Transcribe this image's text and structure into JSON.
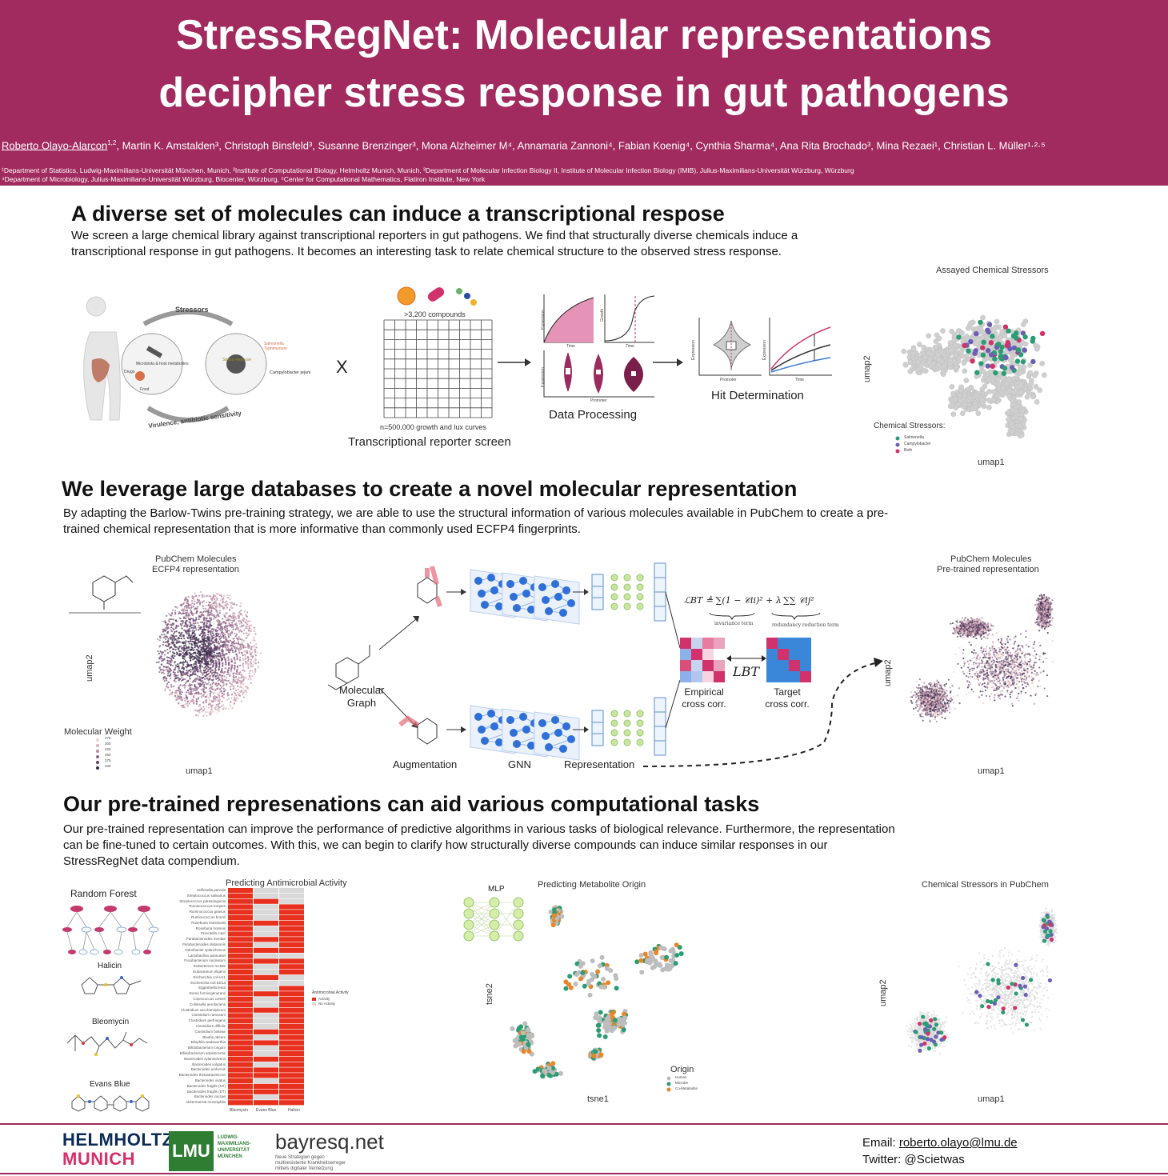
{
  "header": {
    "title_line1": "StressRegNet: Molecular representations",
    "title_line2": "decipher stress response in gut pathogens",
    "first_author": "Roberto Olayo-Alarcon",
    "first_author_sup": "1,2",
    "authors_rest": ", Martin K. Amstalden³, Christoph Binsfeld³, Susanne Brenzinger³, Mona Alzheimer M⁴, Annamaria Zannoni⁴, Fabian Koenig⁴, Cynthia Sharma⁴, Ana Rita Brochado³, Mina Rezaei¹, Christian L. Müller¹·²·⁵",
    "affiliations_line1": "¹Department of Statistics, Ludwig-Maximilians-Universität München, Munich, ²Institute of Computational Biology, Helmholtz Munich, Munich,  ³Department of Molecular Infection Biology II, Institute of Molecular Infection Biology (IMIB), Julius-Maximilians-Universität Würzburg, Würzburg",
    "affiliations_line2": "⁴Department of Microbiology, Julius-Maximilians-Universität Würzburg, Biocenter, Würzburg, ⁵Center for Computational Mathematics, Flatiron Institute, New York"
  },
  "section1": {
    "title": "A diverse set of molecules can induce a transcriptional respose",
    "body": "We screen a large chemical library against transcriptional reporters in gut pathogens. We find that structurally diverse chemicals induce a transcriptional response in gut pathogens. It becomes an interesting task to relate chemical structure to the observed stress response.",
    "labels": {
      "stressors": "Stressors",
      "microbiota": "Microbiota & host metabolites",
      "drugs": "Drugs",
      "food": "Food",
      "stress_response": "Stress response",
      "salmonella": "Salmonella Typhimurium",
      "campylobacter": "Campylobacter jejuni",
      "virulence": "Virulence, antibiotic sensitivity",
      "times": "X",
      "compounds": ">3,200 compounds",
      "curves": "n=500,000 growth and lux curves",
      "screen": "Transcriptional reporter screen",
      "data_processing": "Data Processing",
      "hit_determination": "Hit Determination",
      "expression": "Expression",
      "growth": "Growth",
      "time": "Time",
      "promoter": "Promoter"
    },
    "umap_title": "Assayed Chemical Stressors",
    "umap_xlabel": "umap1",
    "umap_ylabel": "umap2",
    "legend_title": "Chemical Stressors:",
    "legend_items": [
      "Salmonella",
      "Campylobacter",
      "Both"
    ]
  },
  "section2": {
    "title": "We leverage large databases to create a novel molecular representation",
    "body": "By adapting the Barlow-Twins pre-training strategy, we are able to use the structural information of various molecules available in PubChem to create a pre-trained chemical representation that is more informative than commonly used ECFP4 fingerprints.",
    "left_title1": "PubChem Molecules",
    "left_title2": "ECFP4 representation",
    "left_xlabel": "umap1",
    "left_ylabel": "umap2",
    "mw_legend": "Molecular Weight",
    "mw_ticks": [
      "275",
      "300",
      "325",
      "350",
      "375",
      "400"
    ],
    "molecular_graph1": "Molecular",
    "molecular_graph2": "Graph",
    "augmentation": "Augmentation",
    "gnn": "GNN",
    "representation": "Representation",
    "invariance": "invariance term",
    "redundancy": "redundancy reduction term",
    "lbt": "LBT",
    "empirical1": "Empirical",
    "empirical2": "cross corr.",
    "target1": "Target",
    "target2": "cross corr.",
    "right_title1": "PubChem Molecules",
    "right_title2": "Pre-trained representation",
    "right_xlabel": "umap1",
    "right_ylabel": "umap2"
  },
  "section3": {
    "title": "Our pre-trained represenations can aid various computational tasks",
    "body": "Our pre-trained representation can improve the performance of predictive algorithms in various tasks of biological relevance. Furthermore, the representation can be fine-tuned to certain outcomes. With this, we can begin to clarify how structurally diverse compounds can induce similar responses in our StressRegNet data compendium.",
    "random_forest": "Random Forest",
    "halicin": "Halicin",
    "bleomycin": "Bleomycin",
    "evans_blue": "Evans Blue",
    "heatmap_title": "Predicting Antimicrobial Activity",
    "heatmap_legend_title": "Antimicrobial Activity",
    "heatmap_legend": [
      "Activity",
      "No Activity"
    ],
    "mlp": "MLP",
    "tsne_title": "Predicting Metabolite Origin",
    "tsne_xlabel": "tsne1",
    "tsne_ylabel": "tsne2",
    "origin_title": "Origin",
    "origin_items": [
      "Human",
      "Microbe",
      "Co-Metabolite"
    ],
    "right_title": "Chemical Stressors in PubChem",
    "right_xlabel": "umap1",
    "right_ylabel": "umap2"
  },
  "chart_data": {
    "type": "heatmap",
    "title": "Predicting Antimicrobial Activity",
    "columns": [
      "Bleomycin",
      "Evans Blue",
      "Halicin"
    ],
    "rows": [
      "Veillonella parvula",
      "Streptococcus salivarius",
      "Streptococcus parasanguinis",
      "Ruminococcus torques",
      "Ruminococcus gnavus",
      "Ruminococcus bromii",
      "Roseburia intestinalis",
      "Roseburia hominis",
      "Prevotella copri",
      "Parabacteroides merdae",
      "Parabacteroides distasonis",
      "Odoribacter splanchnicus",
      "Lactobacillus paracasei",
      "Fusobacterium nucleatum",
      "Eubacterium rectale",
      "Eubacterium eligens",
      "Escherichia coli IAI1",
      "Escherichia coli ED1a",
      "Eggerthella lenta",
      "Dorea formicigenerans",
      "Coprococcus comes",
      "Collinsella aerofaciens",
      "Clostridium saccharolyticum",
      "Clostridium ramosum",
      "Clostridium perfringens",
      "Clostridium difficile",
      "Clostridium bolteae",
      "Blautia obeum",
      "Bilophila wadsworthia",
      "Bifidobacterium longum",
      "Bifidobacterium adolescentis",
      "Bacteroides xylanisolvens",
      "Bacteroides vulgatus",
      "Bacteroides uniformis",
      "Bacteroides thetaiotaomicron",
      "Bacteroides ovatus",
      "Bacteroides fragilis (NT)",
      "Bacteroides fragilis (ET)",
      "Bacteroides caccae",
      "Akkermansia muciniphila"
    ],
    "values": [
      [
        1,
        0,
        0
      ],
      [
        1,
        0,
        0
      ],
      [
        1,
        1,
        0
      ],
      [
        1,
        0,
        1
      ],
      [
        1,
        0,
        1
      ],
      [
        1,
        0,
        1
      ],
      [
        1,
        1,
        1
      ],
      [
        1,
        0,
        1
      ],
      [
        1,
        0,
        1
      ],
      [
        1,
        1,
        1
      ],
      [
        1,
        0,
        1
      ],
      [
        1,
        1,
        1
      ],
      [
        1,
        0,
        0
      ],
      [
        1,
        1,
        1
      ],
      [
        1,
        0,
        1
      ],
      [
        1,
        0,
        1
      ],
      [
        1,
        1,
        0
      ],
      [
        1,
        0,
        0
      ],
      [
        1,
        0,
        1
      ],
      [
        1,
        1,
        1
      ],
      [
        1,
        0,
        1
      ],
      [
        1,
        0,
        1
      ],
      [
        1,
        1,
        1
      ],
      [
        1,
        0,
        1
      ],
      [
        1,
        0,
        1
      ],
      [
        1,
        0,
        1
      ],
      [
        1,
        1,
        1
      ],
      [
        1,
        0,
        1
      ],
      [
        1,
        1,
        1
      ],
      [
        1,
        0,
        1
      ],
      [
        1,
        0,
        1
      ],
      [
        1,
        1,
        1
      ],
      [
        1,
        0,
        1
      ],
      [
        1,
        1,
        1
      ],
      [
        1,
        1,
        1
      ],
      [
        1,
        0,
        1
      ],
      [
        1,
        1,
        1
      ],
      [
        1,
        1,
        1
      ],
      [
        1,
        0,
        1
      ],
      [
        1,
        1,
        1
      ]
    ],
    "legend": [
      "Activity",
      "No Activity"
    ]
  },
  "colors": {
    "header_bg": "#a12a5e",
    "activity": "#e8301e",
    "no_activity": "#d9d9d9",
    "salmonella": "#2a9d74",
    "campylobacter": "#6a5fb3",
    "both": "#d1326b",
    "human": "#bdbdbd",
    "microbe": "#2a9d74",
    "co_metabolite": "#e8862a"
  },
  "footer": {
    "helmholtz1": "HELMHOLTZ",
    "helmholtz2": "MUNICH",
    "lmu": "LMU",
    "lmu_text": "LUDWIG-MAXIMILIANS-UNIVERSITÄT MÜNCHEN",
    "bayresq": "bayresq.net",
    "bayresq_text": "Neue Strategien gegen multiresistente Krankheitserreger mittels digitaler Vernetzung",
    "email_label": "Email: ",
    "email": "roberto.olayo@lmu.de",
    "twitter": "Twitter: @Scietwas"
  }
}
